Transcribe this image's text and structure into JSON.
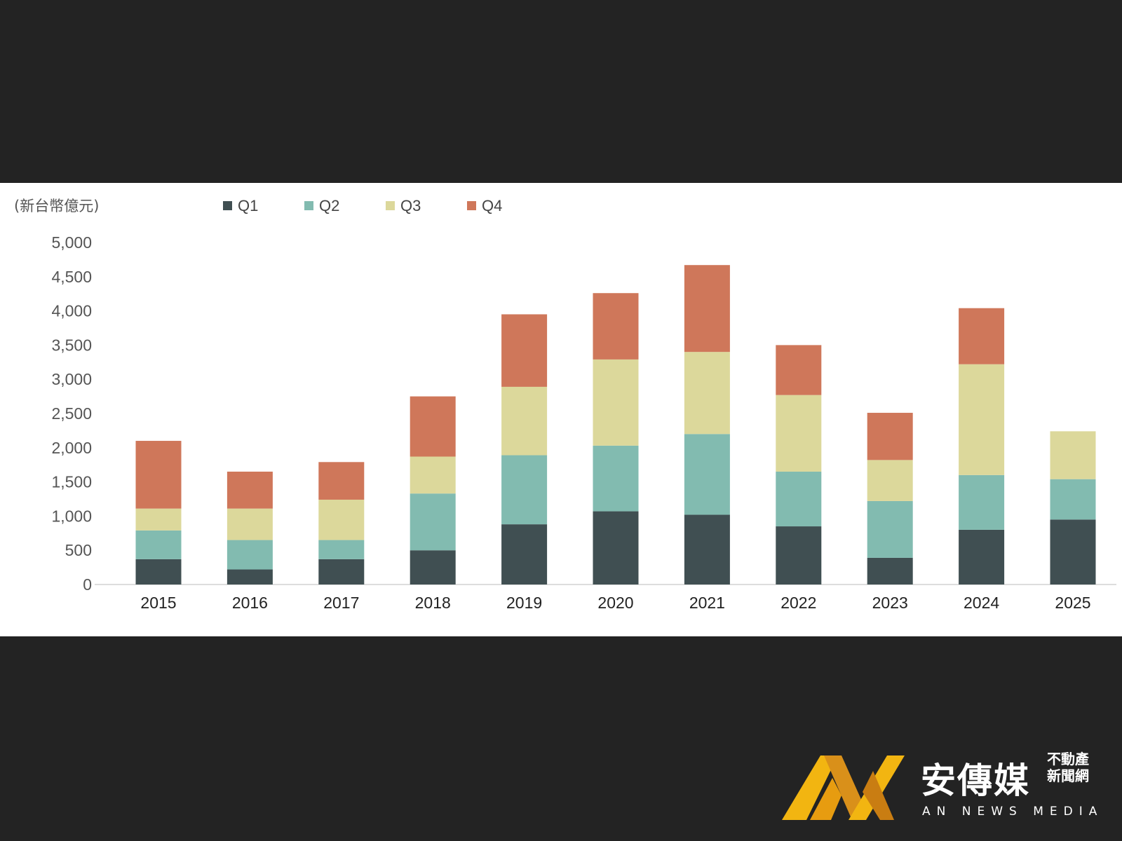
{
  "chart_data": {
    "type": "bar",
    "stacked": true,
    "unit_label": "(新台幣億元)",
    "categories": [
      "2015",
      "2016",
      "2017",
      "2018",
      "2019",
      "2020",
      "2021",
      "2022",
      "2023",
      "2024",
      "2025"
    ],
    "series": [
      {
        "name": "Q1",
        "color": "#404f52",
        "values": [
          370,
          220,
          370,
          500,
          880,
          1070,
          1020,
          850,
          390,
          800,
          950
        ]
      },
      {
        "name": "Q2",
        "color": "#82bbb0",
        "values": [
          420,
          430,
          280,
          830,
          1010,
          960,
          1180,
          800,
          830,
          800,
          590
        ]
      },
      {
        "name": "Q3",
        "color": "#dcd89b",
        "values": [
          320,
          460,
          590,
          540,
          1000,
          1260,
          1200,
          1120,
          600,
          1620,
          700
        ]
      },
      {
        "name": "Q4",
        "color": "#cf775a",
        "values": [
          990,
          540,
          550,
          880,
          1060,
          970,
          1270,
          730,
          690,
          820,
          null
        ]
      }
    ],
    "yticks": [
      "0",
      "500",
      "1,000",
      "1,500",
      "2,000",
      "2,500",
      "3,000",
      "3,500",
      "4,000",
      "4,500",
      "5,000"
    ],
    "ylim": [
      0,
      5000
    ],
    "legend_position": "top",
    "grid": false
  },
  "logo": {
    "brand": "安傳媒",
    "sub_line1": "不動產",
    "sub_line2": "新聞網",
    "english": "AN NEWS MEDIA"
  }
}
